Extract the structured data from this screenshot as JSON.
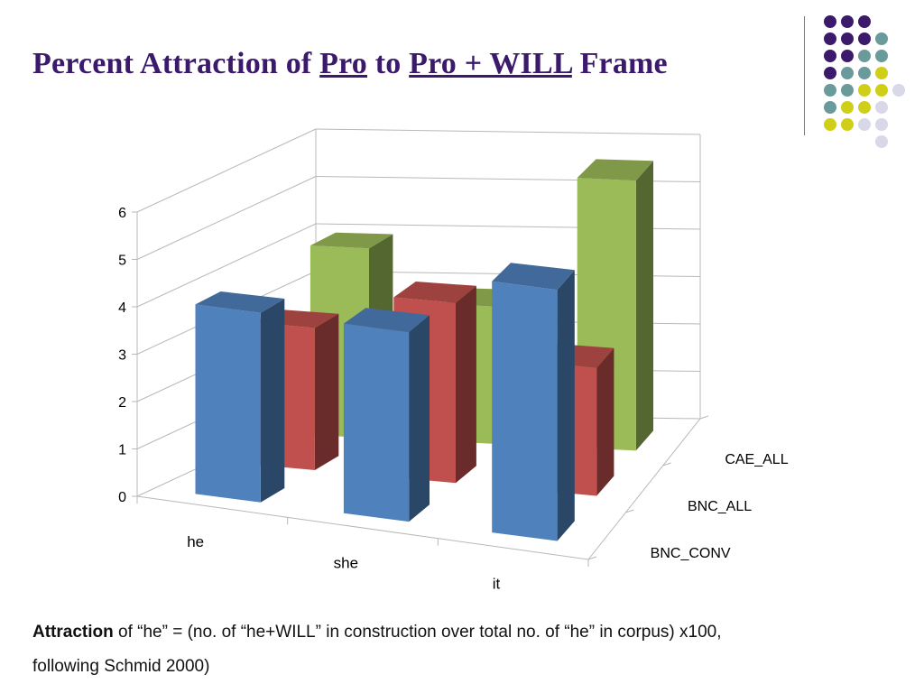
{
  "title": {
    "part1": "Percent Attraction of",
    "term1": "Pro",
    "part2": "to",
    "term2": "Pro + WILL",
    "part3": "Frame"
  },
  "caption": {
    "bold": "Attraction",
    "line1": "of “he” = (no. of “he+WILL” in construction over total no. of “he” in corpus) x100,",
    "line2": "following Schmid 2000)"
  },
  "decor": {
    "dot_colors": {
      "purple": "#3b1a6b",
      "teal": "#6a9a9a",
      "yellow": "#cfcf1a",
      "lavender": "#d8d8e8"
    }
  },
  "chart_data": {
    "type": "bar",
    "style": "3d-clustered-depth",
    "categories": [
      "he",
      "she",
      "it"
    ],
    "series": [
      {
        "name": "BNC_CONV",
        "values": [
          4.0,
          4.0,
          5.3
        ],
        "color": "#4f81bd"
      },
      {
        "name": "BNC_ALL",
        "values": [
          3.0,
          3.8,
          2.7
        ],
        "color": "#c0504d"
      },
      {
        "name": "CAE_ALL",
        "values": [
          4.0,
          2.9,
          5.7
        ],
        "color": "#9bbb59"
      }
    ],
    "ylim": [
      0,
      6
    ],
    "yticks": [
      "0",
      "1",
      "2",
      "3",
      "4",
      "5",
      "6"
    ],
    "grid": true,
    "xlabel": "",
    "ylabel": ""
  }
}
